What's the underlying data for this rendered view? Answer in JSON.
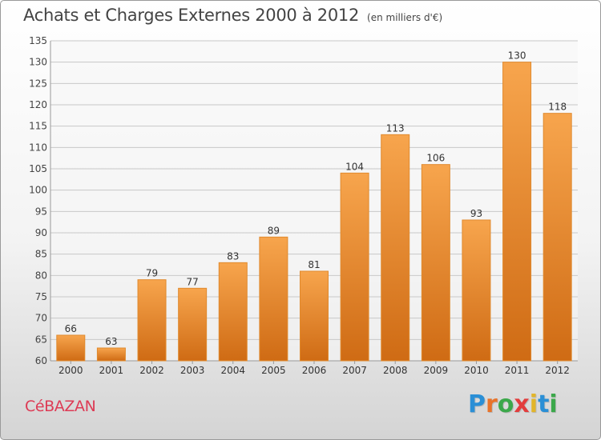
{
  "title": "Achats et Charges Externes 2000 à 2012",
  "subtitle": "(en milliers d'€)",
  "commune": "CéBAZAN",
  "logo": {
    "letters": [
      "P",
      "r",
      "o",
      "x",
      "i",
      "t",
      "i"
    ],
    "colors": [
      "#2a8fd6",
      "#e8732a",
      "#3ba84a",
      "#e23c3c",
      "#e2b52a",
      "#2a8fd6",
      "#3ba84a"
    ]
  },
  "colors": {
    "bar_light": "#f7a54d",
    "bar_dark": "#cf6b14",
    "bar_edge": "#e08a2e"
  },
  "chart_data": {
    "type": "bar",
    "categories": [
      "2000",
      "2001",
      "2002",
      "2003",
      "2004",
      "2005",
      "2006",
      "2007",
      "2008",
      "2009",
      "2010",
      "2011",
      "2012"
    ],
    "values": [
      66,
      63,
      79,
      77,
      83,
      89,
      81,
      104,
      113,
      106,
      93,
      130,
      118
    ],
    "ylim": [
      60,
      135
    ],
    "yticks": [
      60,
      65,
      70,
      75,
      80,
      85,
      90,
      95,
      100,
      105,
      110,
      115,
      120,
      125,
      130,
      135
    ],
    "grid": true,
    "xlabel": "",
    "ylabel": ""
  }
}
